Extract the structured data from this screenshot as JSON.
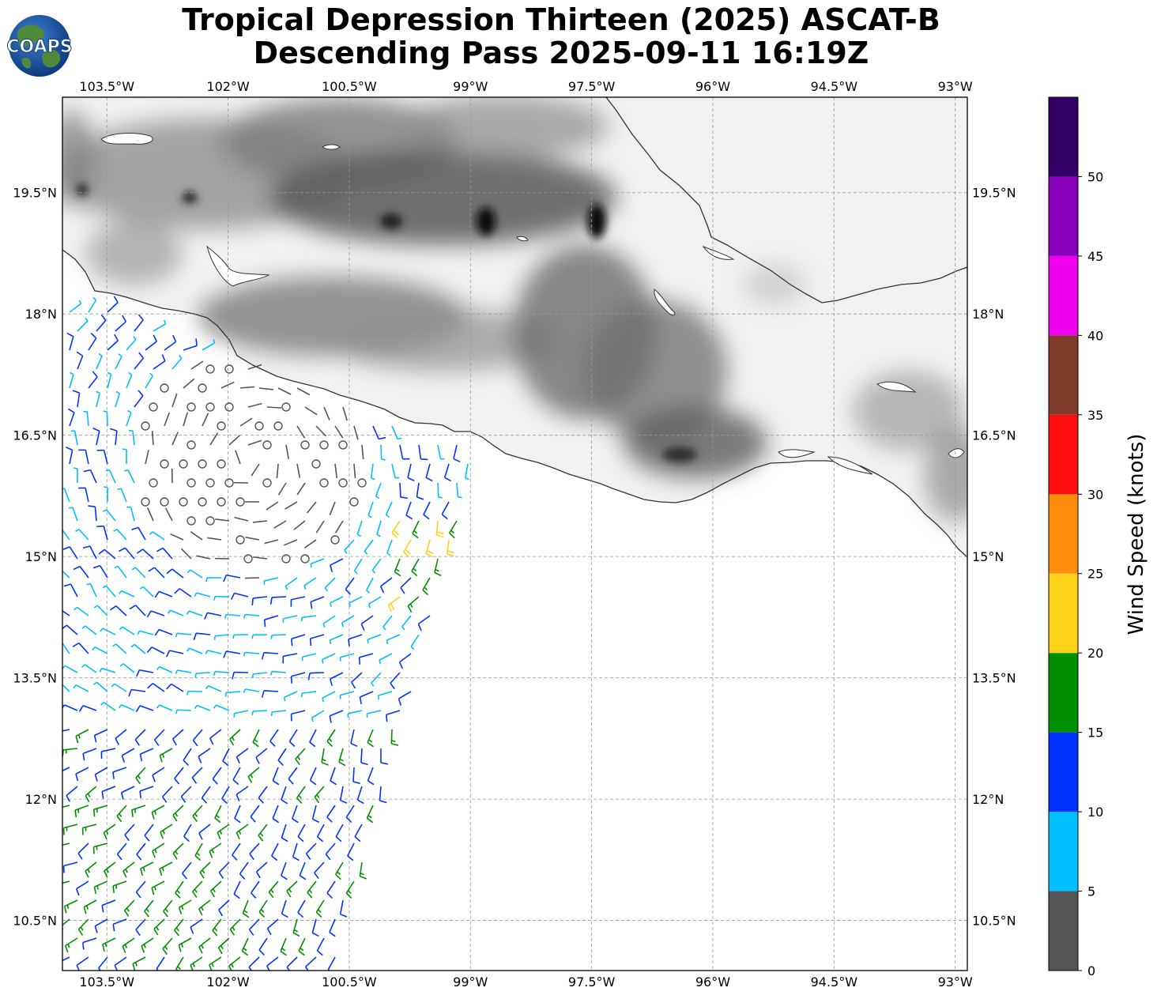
{
  "title": {
    "line1": "Tropical Depression Thirteen (2025) ASCAT-B",
    "line2": "Descending Pass 2025-09-11 16:19Z"
  },
  "logo": {
    "text": "COAPS"
  },
  "map": {
    "lon_ticks": [
      "103.5°W",
      "102°W",
      "100.5°W",
      "99°W",
      "97.5°W",
      "96°W",
      "94.5°W",
      "93°W"
    ],
    "lat_ticks": [
      "19.5°N",
      "18°N",
      "16.5°N",
      "15°N",
      "13.5°N",
      "12°N",
      "10.5°N"
    ],
    "lon_values": [
      -103.5,
      -102,
      -100.5,
      -99,
      -97.5,
      -96,
      -94.5,
      -93
    ],
    "lat_values": [
      19.5,
      18,
      16.5,
      15,
      13.5,
      12,
      10.5
    ],
    "extent": {
      "lon_min": -104.05,
      "lon_max": -92.85,
      "lat_min": 9.88,
      "lat_max": 20.68
    },
    "land_shading": "grayscale terrain elevation",
    "ocean_color": "#ffffff",
    "coastline_color": "#333333",
    "grid": "dashed"
  },
  "colorbar": {
    "label": "Wind Speed (knots)",
    "tick_labels": [
      "0",
      "5",
      "10",
      "15",
      "20",
      "25",
      "30",
      "35",
      "40",
      "45",
      "50"
    ],
    "bins": [
      {
        "min": 0,
        "max": 5,
        "color": "#555555"
      },
      {
        "min": 5,
        "max": 10,
        "color": "#00bfff"
      },
      {
        "min": 10,
        "max": 15,
        "color": "#0033ff"
      },
      {
        "min": 15,
        "max": 20,
        "color": "#008f00"
      },
      {
        "min": 20,
        "max": 25,
        "color": "#ffd21a"
      },
      {
        "min": 25,
        "max": 30,
        "color": "#ff8c0a"
      },
      {
        "min": 30,
        "max": 35,
        "color": "#ff0d0d"
      },
      {
        "min": 35,
        "max": 40,
        "color": "#7f3c2a"
      },
      {
        "min": 40,
        "max": 45,
        "color": "#ee00ee"
      },
      {
        "min": 45,
        "max": 50,
        "color": "#8800bb"
      },
      {
        "min": 50,
        "max": 55,
        "color": "#330066"
      }
    ]
  }
}
